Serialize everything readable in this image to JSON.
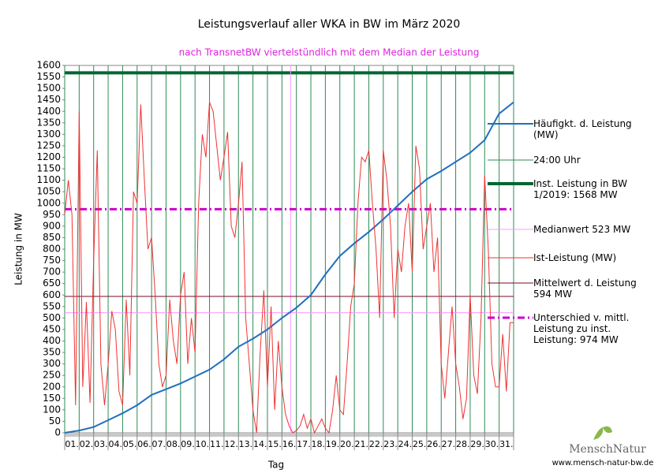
{
  "chart_data": {
    "type": "line",
    "title": "Leistungsverlauf aller WKA in BW im März 2020",
    "subtitle": "nach TransnetBW viertelstündlich mit dem Median der Leistung",
    "x_label": "Tag",
    "y_label": "Leistung in MW",
    "categories": [
      "01.",
      "02.",
      "03.",
      "04.",
      "05.",
      "06.",
      "07.",
      "08.",
      "09.",
      "10.",
      "11.",
      "12.",
      "13.",
      "14.",
      "15.",
      "16.",
      "17.",
      "18.",
      "19.",
      "20.",
      "21.",
      "22.",
      "23.",
      "24.",
      "25.",
      "26.",
      "27.",
      "28.",
      "29.",
      "30.",
      "31."
    ],
    "xlim": [
      0,
      31
    ],
    "xticks": [
      0,
      1,
      2,
      3,
      4,
      5,
      6,
      7,
      8,
      9,
      10,
      11,
      12,
      13,
      14,
      15,
      16,
      17,
      18,
      19,
      20,
      21,
      22,
      23,
      24,
      25,
      26,
      27,
      28,
      29,
      30,
      31
    ],
    "ylim": [
      0,
      1600
    ],
    "yticks": [
      0,
      50,
      100,
      150,
      200,
      250,
      300,
      350,
      400,
      450,
      500,
      550,
      600,
      650,
      700,
      750,
      800,
      850,
      900,
      950,
      1000,
      1050,
      1100,
      1150,
      1200,
      1250,
      1300,
      1350,
      1400,
      1450,
      1500,
      1550,
      1600
    ],
    "series": [
      {
        "name": "Häufigkt. d. Leistung (MW)",
        "style": "line",
        "color": "#1f6fc0",
        "width": 2,
        "x": [
          0,
          1,
          2,
          3,
          4,
          5,
          6,
          7,
          8,
          9,
          10,
          11,
          12,
          13,
          14,
          15,
          16,
          17,
          18,
          19,
          20,
          21,
          22,
          23,
          24,
          25,
          26,
          27,
          28,
          29,
          30,
          31
        ],
        "values": [
          0,
          10,
          25,
          55,
          85,
          120,
          165,
          190,
          215,
          245,
          275,
          320,
          375,
          410,
          450,
          500,
          545,
          600,
          690,
          770,
          825,
          875,
          930,
          990,
          1050,
          1105,
          1140,
          1180,
          1220,
          1275,
          1390,
          1440
        ]
      },
      {
        "name": "24:00 Uhr",
        "style": "vgrid",
        "color": "#2e8b57",
        "width": 1
      },
      {
        "name": "Inst. Leistung in BW 1/2019: 1568 MW",
        "style": "hline",
        "color": "#006633",
        "width": 4,
        "value": 1568
      },
      {
        "name": "Medianwert 523 MW",
        "style": "hline",
        "color": "#ff99ff",
        "width": 1,
        "value": 523,
        "x_at": 15.6
      },
      {
        "name": "Ist-Leistung (MW)",
        "style": "line",
        "color": "#ee3333",
        "width": 1,
        "x": [
          0,
          0.25,
          0.5,
          0.75,
          1,
          1.25,
          1.5,
          1.75,
          2,
          2.25,
          2.5,
          2.75,
          3,
          3.25,
          3.5,
          3.75,
          4,
          4.25,
          4.5,
          4.75,
          5,
          5.25,
          5.5,
          5.75,
          6,
          6.25,
          6.5,
          6.75,
          7,
          7.25,
          7.5,
          7.75,
          8,
          8.25,
          8.5,
          8.75,
          9,
          9.25,
          9.5,
          9.75,
          10,
          10.25,
          10.5,
          10.75,
          11,
          11.25,
          11.5,
          11.75,
          12,
          12.25,
          12.5,
          12.75,
          13,
          13.25,
          13.5,
          13.75,
          14,
          14.25,
          14.5,
          14.75,
          15,
          15.25,
          15.5,
          15.75,
          16,
          16.25,
          16.5,
          16.75,
          17,
          17.25,
          17.5,
          17.75,
          18,
          18.25,
          18.5,
          18.75,
          19,
          19.25,
          19.5,
          19.75,
          20,
          20.25,
          20.5,
          20.75,
          21,
          21.25,
          21.5,
          21.75,
          22,
          22.25,
          22.5,
          22.75,
          23,
          23.25,
          23.5,
          23.75,
          24,
          24.25,
          24.5,
          24.75,
          25,
          25.25,
          25.5,
          25.75,
          26,
          26.25,
          26.5,
          26.75,
          27,
          27.25,
          27.5,
          27.75,
          28,
          28.25,
          28.5,
          28.75,
          29,
          29.25,
          29.5,
          29.75,
          30,
          30.25,
          30.5,
          30.75,
          31
        ],
        "values": [
          950,
          1100,
          950,
          120,
          1400,
          200,
          570,
          130,
          750,
          1230,
          300,
          120,
          300,
          530,
          450,
          180,
          120,
          580,
          250,
          1050,
          1000,
          1430,
          1100,
          800,
          850,
          600,
          300,
          200,
          250,
          580,
          400,
          300,
          600,
          700,
          300,
          500,
          350,
          1000,
          1300,
          1200,
          1440,
          1400,
          1250,
          1100,
          1200,
          1310,
          900,
          850,
          1000,
          1180,
          500,
          300,
          100,
          0,
          350,
          620,
          200,
          550,
          100,
          400,
          200,
          80,
          30,
          0,
          10,
          30,
          80,
          20,
          60,
          0,
          30,
          60,
          20,
          0,
          100,
          250,
          100,
          80,
          300,
          550,
          650,
          1000,
          1200,
          1180,
          1230,
          1000,
          800,
          500,
          1230,
          1100,
          900,
          500,
          800,
          700,
          900,
          1000,
          700,
          1250,
          1150,
          800,
          900,
          1000,
          700,
          850,
          300,
          150,
          350,
          550,
          300,
          200,
          60,
          150,
          600,
          250,
          170,
          500,
          1120,
          800,
          300,
          200,
          200,
          430,
          180,
          480,
          480
        ]
      },
      {
        "name": "Mittelwert d. Leistung 594 MW",
        "style": "hline",
        "color": "#7a0a2a",
        "width": 1,
        "value": 594
      },
      {
        "name": "Unterschied v. mittl. Leistung zu inst. Leistung: 974 MW",
        "style": "hline",
        "color": "#cc00cc",
        "width": 3,
        "dash": "9 4 2 4",
        "value": 974
      }
    ],
    "logo": "MenschNatur",
    "url": "www.mensch-natur-bw.de"
  }
}
